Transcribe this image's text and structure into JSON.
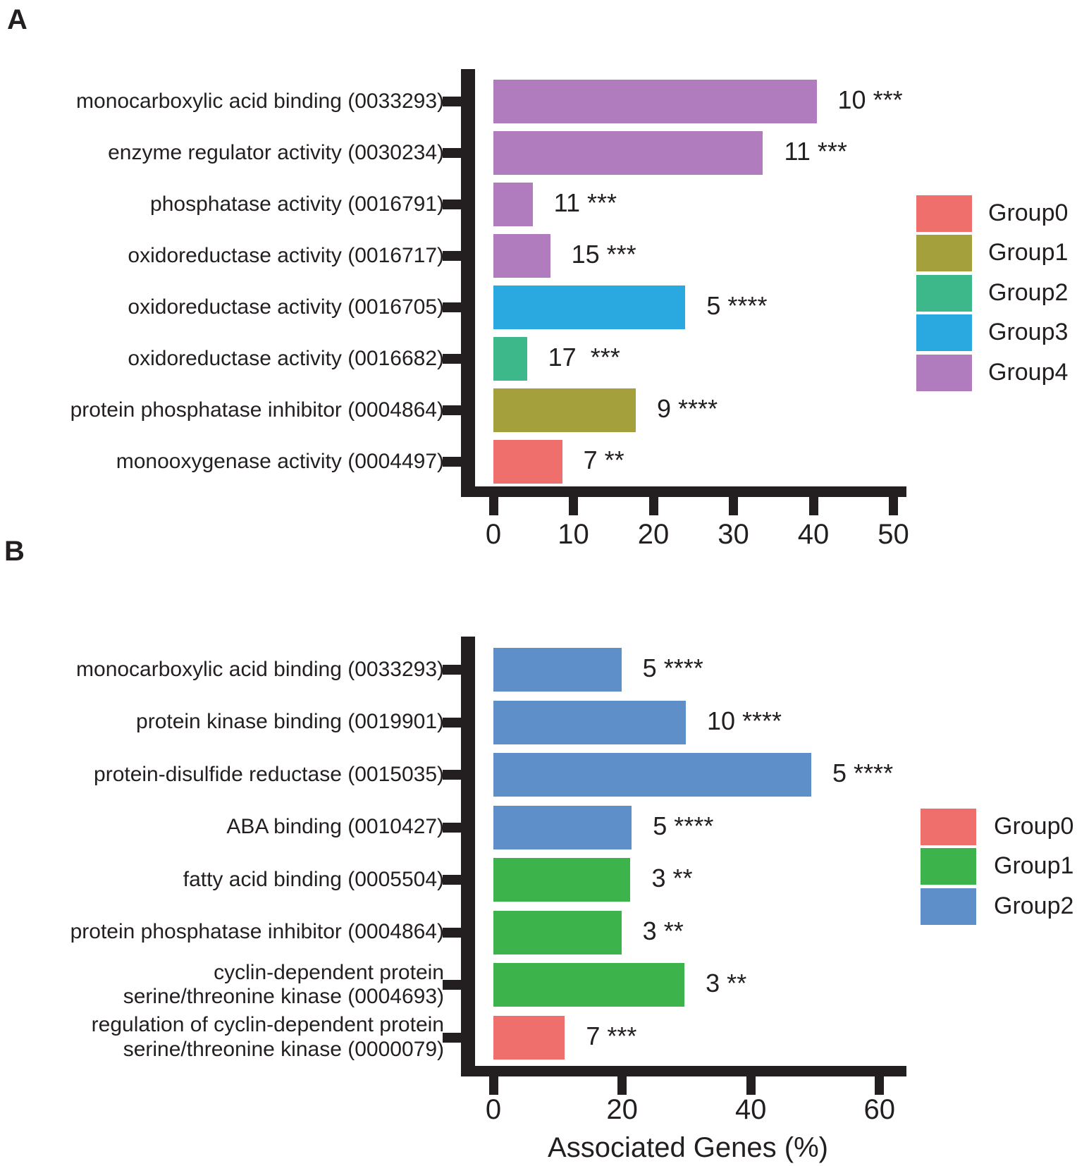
{
  "figure": {
    "panels": [
      "A",
      "B"
    ]
  },
  "chart_data": [
    {
      "id": "A",
      "type": "bar",
      "orientation": "horizontal",
      "title": "",
      "xlabel": "",
      "ylabel": "",
      "xlim": [
        0,
        51.5
      ],
      "xticks": [
        0,
        10,
        20,
        30,
        40,
        50
      ],
      "grid": false,
      "legend_position": "right",
      "legend": [
        {
          "label": "Group0",
          "color": "#ee6f6c"
        },
        {
          "label": "Group1",
          "color": "#a4a03b"
        },
        {
          "label": "Group2",
          "color": "#3cb88a"
        },
        {
          "label": "Group3",
          "color": "#29a9e0"
        },
        {
          "label": "Group4",
          "color": "#b17cbe"
        }
      ],
      "bars": [
        {
          "label_lines": [
            "monocarboxylic acid binding (0033293)"
          ],
          "value": 40.4,
          "group": "Group4",
          "annotation": "10 ***"
        },
        {
          "label_lines": [
            "enzyme regulator activity (0030234)"
          ],
          "value": 33.7,
          "group": "Group4",
          "annotation": "11 ***"
        },
        {
          "label_lines": [
            "phosphatase activity (0016791)"
          ],
          "value": 4.9,
          "group": "Group4",
          "annotation": "11 ***"
        },
        {
          "label_lines": [
            "oxidoreductase activity (0016717)"
          ],
          "value": 7.1,
          "group": "Group4",
          "annotation": "15 ***"
        },
        {
          "label_lines": [
            "oxidoreductase activity (0016705)"
          ],
          "value": 24.0,
          "group": "Group3",
          "annotation": "5 ****"
        },
        {
          "label_lines": [
            "oxidoreductase activity (0016682)"
          ],
          "value": 4.2,
          "group": "Group2",
          "annotation": "17  ***"
        },
        {
          "label_lines": [
            "protein phosphatase inhibitor  (0004864)"
          ],
          "value": 17.8,
          "group": "Group1",
          "annotation": "9 ****"
        },
        {
          "label_lines": [
            "monooxygenase activity (0004497)"
          ],
          "value": 8.6,
          "group": "Group0",
          "annotation": "7 **"
        }
      ]
    },
    {
      "id": "B",
      "type": "bar",
      "orientation": "horizontal",
      "title": "",
      "xlabel": "Associated Genes (%)",
      "ylabel": "",
      "xlim": [
        0,
        63.5
      ],
      "xticks": [
        0,
        20,
        40,
        60
      ],
      "grid": false,
      "legend_position": "right",
      "legend": [
        {
          "label": "Group0",
          "color": "#ee6f6c"
        },
        {
          "label": "Group1",
          "color": "#3cb44b"
        },
        {
          "label": "Group2",
          "color": "#5f8fc9"
        }
      ],
      "bars": [
        {
          "label_lines": [
            "monocarboxylic acid binding (0033293)"
          ],
          "value": 19.9,
          "group": "Group2",
          "annotation": "5 ****"
        },
        {
          "label_lines": [
            "protein kinase binding (0019901)"
          ],
          "value": 29.9,
          "group": "Group2",
          "annotation": "10 ****"
        },
        {
          "label_lines": [
            "protein-disulfide reductase (0015035)"
          ],
          "value": 49.4,
          "group": "Group2",
          "annotation": "5 ****"
        },
        {
          "label_lines": [
            "ABA binding (0010427)"
          ],
          "value": 21.5,
          "group": "Group2",
          "annotation": "5 ****"
        },
        {
          "label_lines": [
            "fatty acid binding (0005504)"
          ],
          "value": 21.3,
          "group": "Group1",
          "annotation": "3 **"
        },
        {
          "label_lines": [
            "protein phosphatase inhibitor (0004864)"
          ],
          "value": 19.9,
          "group": "Group1",
          "annotation": "3 **"
        },
        {
          "label_lines": [
            "cyclin-dependent protein",
            "serine/threonine kinase (0004693)"
          ],
          "value": 29.7,
          "group": "Group1",
          "annotation": "3 **"
        },
        {
          "label_lines": [
            "regulation of cyclin-dependent protein",
            "serine/threonine kinase (0000079)"
          ],
          "value": 11.1,
          "group": "Group0",
          "annotation": "7 ***"
        }
      ]
    }
  ]
}
